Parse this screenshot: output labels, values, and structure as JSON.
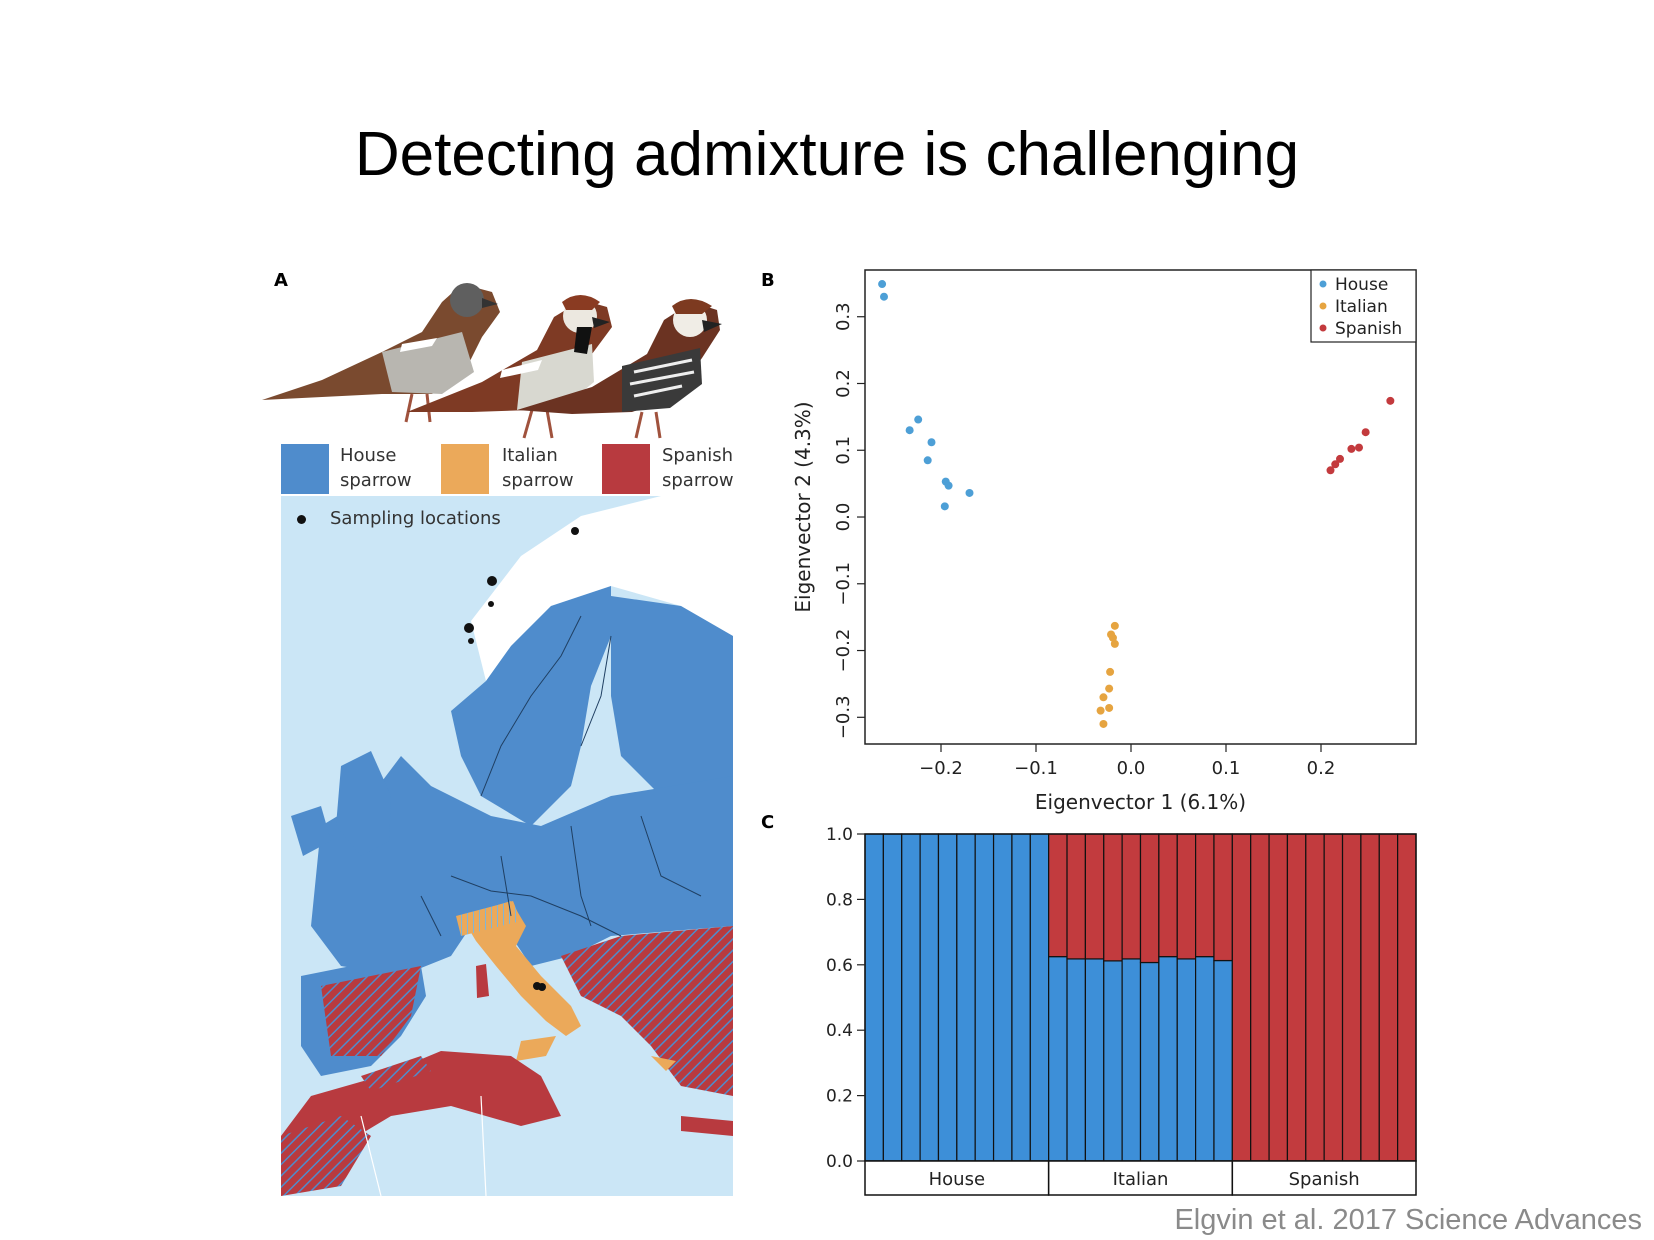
{
  "slide": {
    "title": "Detecting admixture is challenging",
    "citation": "Elgvin et al. 2017 Science Advances"
  },
  "panel_a": {
    "letter": "A",
    "legend": [
      {
        "label_line1": "House",
        "label_line2": "sparrow",
        "color": "#4f8ccc"
      },
      {
        "label_line1": "Italian",
        "label_line2": "sparrow",
        "color": "#eba95a"
      },
      {
        "label_line1": "Spanish",
        "label_line2": "sparrow",
        "color": "#b83a3f"
      }
    ],
    "sampling_label": "Sampling locations",
    "colors": {
      "sea": "#cbe6f6",
      "house": "#4f8ccc",
      "italian": "#eba95a",
      "spanish": "#b83a3f",
      "snow": "#ffffff",
      "point": "#111111"
    }
  },
  "chart_data": [
    {
      "panel": "B",
      "type": "scatter",
      "xlabel": "Eigenvector 1 (6.1%)",
      "ylabel": "Eigenvector 2 (4.3%)",
      "xlim": [
        -0.28,
        0.3
      ],
      "ylim": [
        -0.34,
        0.37
      ],
      "xticks": [
        {
          "v": -0.2,
          "label": "−0.2"
        },
        {
          "v": -0.1,
          "label": "−0.1"
        },
        {
          "v": 0.0,
          "label": "0.0"
        },
        {
          "v": 0.1,
          "label": "0.1"
        },
        {
          "v": 0.2,
          "label": "0.2"
        }
      ],
      "yticks": [
        {
          "v": -0.3,
          "label": "−0.3"
        },
        {
          "v": -0.2,
          "label": "−0.2"
        },
        {
          "v": -0.1,
          "label": "−0.1"
        },
        {
          "v": 0.0,
          "label": "0.0"
        },
        {
          "v": 0.1,
          "label": "0.1"
        },
        {
          "v": 0.2,
          "label": "0.2"
        },
        {
          "v": 0.3,
          "label": "0.3"
        }
      ],
      "legend_position": "top-right",
      "series": [
        {
          "name": "House",
          "color": "#4d9fd6",
          "points": [
            [
              -0.262,
              0.349
            ],
            [
              -0.26,
              0.33
            ],
            [
              -0.233,
              0.13
            ],
            [
              -0.224,
              0.146
            ],
            [
              -0.214,
              0.085
            ],
            [
              -0.21,
              0.112
            ],
            [
              -0.195,
              0.053
            ],
            [
              -0.192,
              0.047
            ],
            [
              -0.196,
              0.016
            ],
            [
              -0.17,
              0.036
            ]
          ]
        },
        {
          "name": "Italian",
          "color": "#e6a440",
          "points": [
            [
              -0.017,
              -0.163
            ],
            [
              -0.019,
              -0.181
            ],
            [
              -0.021,
              -0.176
            ],
            [
              -0.017,
              -0.19
            ],
            [
              -0.022,
              -0.232
            ],
            [
              -0.023,
              -0.257
            ],
            [
              -0.029,
              -0.27
            ],
            [
              -0.023,
              -0.286
            ],
            [
              -0.032,
              -0.29
            ],
            [
              -0.029,
              -0.31
            ]
          ]
        },
        {
          "name": "Spanish",
          "color": "#c33a3d",
          "points": [
            [
              0.273,
              0.174
            ],
            [
              0.247,
              0.127
            ],
            [
              0.24,
              0.104
            ],
            [
              0.232,
              0.102
            ],
            [
              0.22,
              0.087
            ],
            [
              0.215,
              0.079
            ],
            [
              0.21,
              0.07
            ]
          ]
        }
      ]
    },
    {
      "panel": "C",
      "type": "bar",
      "stacked": true,
      "ylim": [
        0,
        1
      ],
      "yticks": [
        {
          "v": 0,
          "label": "0.0"
        },
        {
          "v": 0.2,
          "label": "0.2"
        },
        {
          "v": 0.4,
          "label": "0.4"
        },
        {
          "v": 0.6,
          "label": "0.6"
        },
        {
          "v": 0.8,
          "label": "0.8"
        },
        {
          "v": 1.0,
          "label": "1.0"
        }
      ],
      "groups": [
        {
          "label": "House",
          "bars": 10
        },
        {
          "label": "Italian",
          "bars": 10
        },
        {
          "label": "Spanish",
          "bars": 10
        }
      ],
      "series": [
        {
          "color": "#3d8fd8",
          "values": [
            1,
            1,
            1,
            1,
            1,
            1,
            1,
            1,
            1,
            1,
            0.625,
            0.618,
            0.618,
            0.612,
            0.618,
            0.607,
            0.625,
            0.618,
            0.625,
            0.613,
            0,
            0,
            0,
            0,
            0,
            0,
            0,
            0,
            0,
            0
          ]
        },
        {
          "color": "#c23b3e",
          "values": [
            0,
            0,
            0,
            0,
            0,
            0,
            0,
            0,
            0,
            0,
            0.375,
            0.382,
            0.382,
            0.388,
            0.382,
            0.393,
            0.375,
            0.382,
            0.375,
            0.387,
            1,
            1,
            1,
            1,
            1,
            1,
            1,
            1,
            1,
            1
          ]
        }
      ]
    }
  ]
}
